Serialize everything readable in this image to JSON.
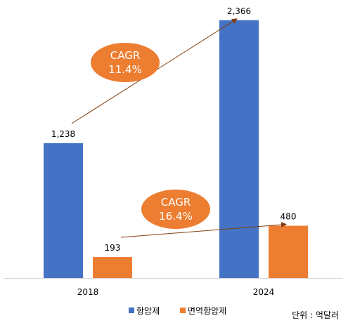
{
  "chart_data": {
    "type": "bar",
    "categories": [
      "2018",
      "2024"
    ],
    "series": [
      {
        "name": "항암제",
        "values": [
          1238,
          2366
        ],
        "labels": [
          "1,238",
          "2,366"
        ],
        "color": "#4472C4"
      },
      {
        "name": "면역항암제",
        "values": [
          193,
          480
        ],
        "labels": [
          "193",
          "480"
        ],
        "color": "#ED7D31"
      }
    ],
    "ylim": [
      0,
      2500
    ],
    "grid": false,
    "legend": "bottom",
    "annotations": [
      {
        "series": "항암제",
        "title": "CAGR",
        "value": "11.4%"
      },
      {
        "series": "면역항암제",
        "title": "CAGR",
        "value": "16.4%"
      }
    ],
    "unit_note": "단위 : 억달러",
    "arrow_color": "#843C0C",
    "bubble_color": "#ED7D31"
  }
}
